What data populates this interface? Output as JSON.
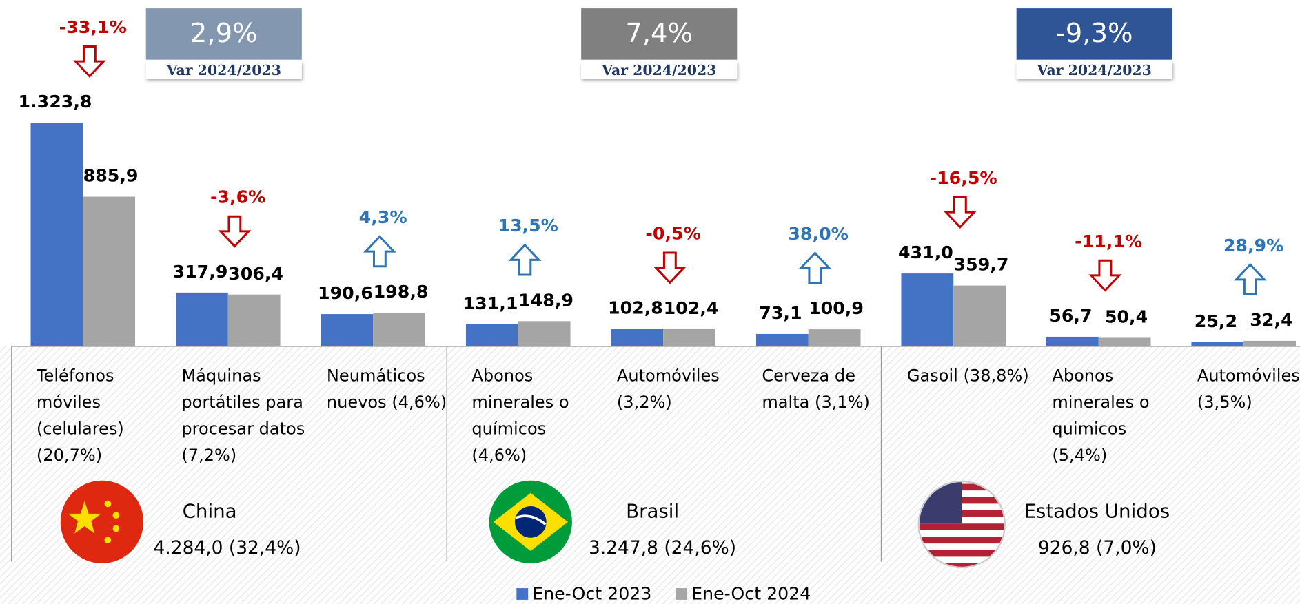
{
  "chart_data": {
    "type": "bar",
    "categories": [
      "Teléfonos\nmóviles\n(celulares)\n(20,7%)",
      "Máquinas\nportátiles para\nprocesar datos\n(7,2%)",
      "Neumáticos\nnuevos (4,6%)",
      "Abonos\nminerales o\nquímicos\n(4,6%)",
      "Automóviles\n(3,2%)",
      "Cerveza de\nmalta  (3,1%)",
      "Gasoil (38,8%)",
      "Abonos\nminerales o\nquimicos\n(5,4%)",
      "Automóviles\n(3,5%)"
    ],
    "series": [
      {
        "name": "Ene-Oct 2023",
        "color": "#4472c4",
        "values": [
          1323.8,
          317.9,
          190.6,
          131.1,
          102.8,
          73.1,
          431.0,
          56.7,
          25.2
        ],
        "value_labels": [
          "1.323,8",
          "317,9",
          "190,6",
          "131,1",
          "102,8",
          "73,1",
          "431,0",
          "56,7",
          "25,2"
        ]
      },
      {
        "name": "Ene-Oct 2024",
        "color": "#a5a5a5",
        "values": [
          885.9,
          306.4,
          198.8,
          148.9,
          102.4,
          100.9,
          359.7,
          50.4,
          32.4
        ],
        "value_labels": [
          "885,9",
          "306,4",
          "198,8",
          "148,9",
          "102,4",
          "100,9",
          "359,7",
          "50,4",
          "32,4"
        ]
      }
    ],
    "changes": [
      -33.1,
      -3.6,
      4.3,
      13.5,
      -0.5,
      38.0,
      -16.5,
      -11.1,
      28.9
    ],
    "change_labels": [
      "-33,1%",
      "-3,6%",
      "4,3%",
      "13,5%",
      "-0,5%",
      "38,0%",
      "-16,5%",
      "-11,1%",
      "28,9%"
    ],
    "up_color": "#2e75b6",
    "down_color": "#c00000",
    "groups": [
      {
        "name": "China",
        "summary": "4.284,0 (32,4%)",
        "variation": 2.9,
        "variation_label": "2,9%",
        "variation_caption": "Var 2024/2023",
        "box_color": "#8497b0"
      },
      {
        "name": "Brasil",
        "summary": "3.247,8 (24,6%)",
        "variation": 7.4,
        "variation_label": "7,4%",
        "variation_caption": "Var 2024/2023",
        "box_color": "#808080"
      },
      {
        "name": "Estados Unidos",
        "summary": "926,8 (7,0%)",
        "variation": -9.3,
        "variation_label": "-9,3%",
        "variation_caption": "Var 2024/2023",
        "box_color": "#2f5597"
      }
    ]
  }
}
